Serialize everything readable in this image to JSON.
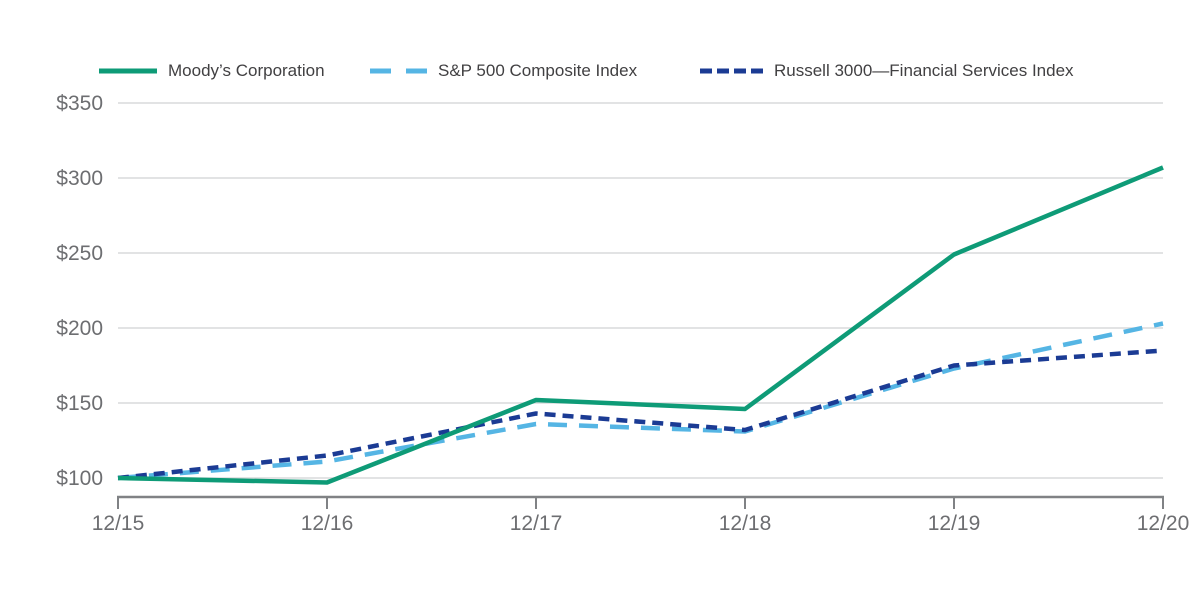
{
  "chart_data": {
    "type": "line",
    "x_categories": [
      "12/15",
      "12/16",
      "12/17",
      "12/18",
      "12/19",
      "12/20"
    ],
    "y_axis": {
      "min": 100,
      "max": 350,
      "tick_values": [
        100,
        150,
        200,
        250,
        300,
        350
      ],
      "tick_labels": [
        "$100",
        "$150",
        "$200",
        "$250",
        "$300",
        "$350"
      ]
    },
    "series": [
      {
        "name": "Moody’s Corporation",
        "color": "#0e9b77",
        "dash": "solid",
        "values": [
          100,
          97,
          152,
          146,
          249,
          307
        ]
      },
      {
        "name": "S&P 500 Composite Index",
        "color": "#55b5e4",
        "dash": "long-dash",
        "values": [
          100,
          111,
          136,
          131,
          173,
          203
        ]
      },
      {
        "name": "Russell 3000—Financial Services Index",
        "color": "#1b3b94",
        "dash": "short-dash",
        "values": [
          100,
          115,
          143,
          132,
          175,
          185
        ]
      }
    ],
    "legend_position": "top",
    "grid": "horizontal-only"
  },
  "colors": {
    "background": "#ffffff",
    "gridline": "#d9dadb",
    "axis": "#808285",
    "tick_label": "#6d6e71",
    "legend_text": "#414042"
  }
}
